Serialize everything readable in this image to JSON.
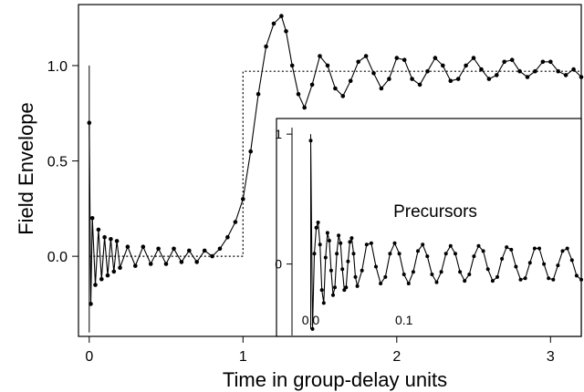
{
  "chart_data": [
    {
      "type": "line",
      "title": "",
      "xlabel": "Time in group-delay units",
      "ylabel": "Field Envelope",
      "xlim": [
        -0.07,
        3.2
      ],
      "ylim": [
        -0.42,
        1.32
      ],
      "x_ticks": [
        0,
        1,
        2,
        3
      ],
      "x_tick_labels": [
        "0",
        "1",
        "2",
        "3"
      ],
      "y_ticks": [
        0.0,
        0.5,
        1.0
      ],
      "y_tick_labels": [
        "0.0",
        "0.5",
        "1.0"
      ],
      "grid": false,
      "series": [
        {
          "name": "",
          "style": "solid line with dot markers",
          "color": "#000000",
          "x": [
            0.0,
            0.01,
            0.02,
            0.04,
            0.06,
            0.08,
            0.1,
            0.12,
            0.14,
            0.16,
            0.18,
            0.2,
            0.25,
            0.3,
            0.35,
            0.4,
            0.45,
            0.5,
            0.55,
            0.6,
            0.65,
            0.7,
            0.75,
            0.8,
            0.85,
            0.9,
            0.95,
            1.0,
            1.05,
            1.1,
            1.15,
            1.2,
            1.25,
            1.28,
            1.32,
            1.36,
            1.4,
            1.45,
            1.5,
            1.55,
            1.6,
            1.65,
            1.7,
            1.75,
            1.8,
            1.85,
            1.9,
            1.95,
            2.0,
            2.05,
            2.1,
            2.15,
            2.2,
            2.25,
            2.3,
            2.35,
            2.4,
            2.45,
            2.5,
            2.55,
            2.6,
            2.65,
            2.7,
            2.75,
            2.8,
            2.85,
            2.9,
            2.95,
            3.0,
            3.05,
            3.1,
            3.15,
            3.2
          ],
          "y": [
            0.7,
            -0.25,
            0.2,
            -0.15,
            0.14,
            -0.12,
            0.1,
            -0.1,
            0.09,
            -0.08,
            0.08,
            -0.06,
            0.05,
            -0.05,
            0.05,
            -0.04,
            0.04,
            -0.04,
            0.04,
            -0.03,
            0.03,
            -0.03,
            0.03,
            0.0,
            0.04,
            0.1,
            0.18,
            0.3,
            0.55,
            0.85,
            1.1,
            1.22,
            1.26,
            1.18,
            1.0,
            0.85,
            0.78,
            0.9,
            1.05,
            1.0,
            0.88,
            0.84,
            0.92,
            1.02,
            1.05,
            0.96,
            0.88,
            0.93,
            1.04,
            1.03,
            0.93,
            0.9,
            0.97,
            1.04,
            1.0,
            0.92,
            0.93,
            1.0,
            1.04,
            0.98,
            0.93,
            0.95,
            1.02,
            1.03,
            0.97,
            0.94,
            0.97,
            1.02,
            1.02,
            0.97,
            0.95,
            0.98,
            0.94
          ]
        },
        {
          "name": "",
          "style": "dotted step",
          "color": "#000000",
          "x": [
            0.0,
            1.0,
            1.0,
            3.2
          ],
          "y": [
            0.0,
            0.0,
            0.97,
            0.97
          ]
        },
        {
          "name": "",
          "style": "thin vertical spike",
          "color": "#000000",
          "x": [
            0.0,
            0.0
          ],
          "y": [
            -0.4,
            1.0
          ]
        }
      ]
    },
    {
      "type": "line",
      "title": "",
      "annotation": "Precursors",
      "xlabel": "",
      "ylabel": "",
      "xlim": [
        -0.02,
        0.29
      ],
      "ylim": [
        -0.55,
        1.05
      ],
      "x_ticks": [
        0.0,
        0.1
      ],
      "x_tick_labels": [
        "0.0",
        "0.1"
      ],
      "y_ticks": [
        0,
        1
      ],
      "y_tick_labels": [
        "0",
        "1"
      ],
      "grid": false,
      "series": [
        {
          "name": "",
          "style": "solid line with dot markers",
          "color": "#000000",
          "x": [
            0.0,
            0.002,
            0.004,
            0.006,
            0.008,
            0.01,
            0.012,
            0.014,
            0.016,
            0.018,
            0.02,
            0.022,
            0.024,
            0.026,
            0.028,
            0.03,
            0.032,
            0.034,
            0.036,
            0.038,
            0.04,
            0.042,
            0.044,
            0.046,
            0.048,
            0.05,
            0.055,
            0.06,
            0.065,
            0.07,
            0.075,
            0.08,
            0.085,
            0.09,
            0.095,
            0.1,
            0.105,
            0.11,
            0.115,
            0.12,
            0.125,
            0.13,
            0.135,
            0.14,
            0.145,
            0.15,
            0.155,
            0.16,
            0.165,
            0.17,
            0.175,
            0.18,
            0.185,
            0.19,
            0.195,
            0.2,
            0.205,
            0.21,
            0.215,
            0.22,
            0.225,
            0.23,
            0.235,
            0.24,
            0.245,
            0.25,
            0.255,
            0.26,
            0.265,
            0.27,
            0.275,
            0.28,
            0.285,
            0.29
          ],
          "y": [
            0.95,
            -0.5,
            0.08,
            0.28,
            0.32,
            0.15,
            -0.2,
            -0.3,
            0.05,
            0.24,
            0.18,
            -0.05,
            -0.24,
            -0.18,
            0.08,
            0.22,
            0.16,
            -0.04,
            -0.2,
            -0.18,
            0.02,
            0.17,
            0.2,
            0.08,
            -0.1,
            -0.17,
            -0.05,
            0.15,
            0.16,
            -0.02,
            -0.15,
            -0.1,
            0.08,
            0.16,
            0.08,
            -0.08,
            -0.15,
            -0.06,
            0.1,
            0.15,
            0.06,
            -0.08,
            -0.14,
            -0.06,
            0.08,
            0.14,
            0.08,
            -0.06,
            -0.13,
            -0.08,
            0.06,
            0.14,
            0.1,
            -0.04,
            -0.13,
            -0.1,
            0.04,
            0.13,
            0.11,
            -0.02,
            -0.12,
            -0.11,
            0.01,
            0.12,
            0.12,
            0.0,
            -0.11,
            -0.12,
            -0.01,
            0.1,
            0.12,
            0.03,
            -0.09,
            -0.12
          ]
        },
        {
          "name": "",
          "style": "thin vertical spike",
          "color": "#000000",
          "x": [
            0.0,
            0.0
          ],
          "y": [
            -0.5,
            1.0
          ]
        }
      ]
    }
  ]
}
